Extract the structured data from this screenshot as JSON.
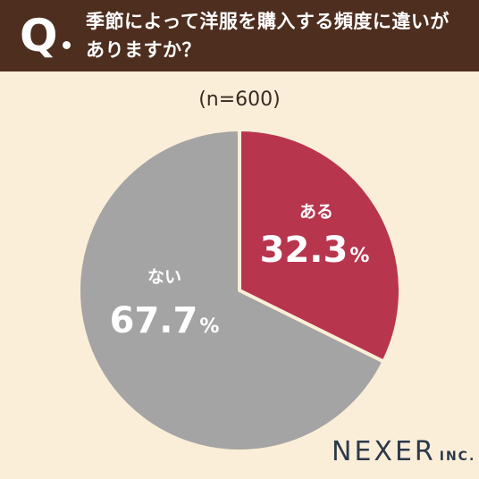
{
  "header": {
    "q_label": "Q",
    "question": "季節によって洋服を購入する頻度に違いが\nありますか？"
  },
  "sample_size": "(n=600)",
  "chart_data": {
    "type": "pie",
    "title": "",
    "slices": [
      {
        "label": "ある",
        "value": 32.3,
        "display": "32.3",
        "unit": "%",
        "color": "#b8354e"
      },
      {
        "label": "ない",
        "value": 67.7,
        "display": "67.7",
        "unit": "%",
        "color": "#a4a4a4"
      }
    ],
    "start": "12 o'clock",
    "direction": "clockwise",
    "separator_color": "#faeed9"
  },
  "logo": {
    "main": "NEXER",
    "sub": "INC."
  },
  "colors": {
    "header_bg": "#4e2e1f",
    "background": "#faeed9",
    "text_dark": "#3a2a22"
  }
}
